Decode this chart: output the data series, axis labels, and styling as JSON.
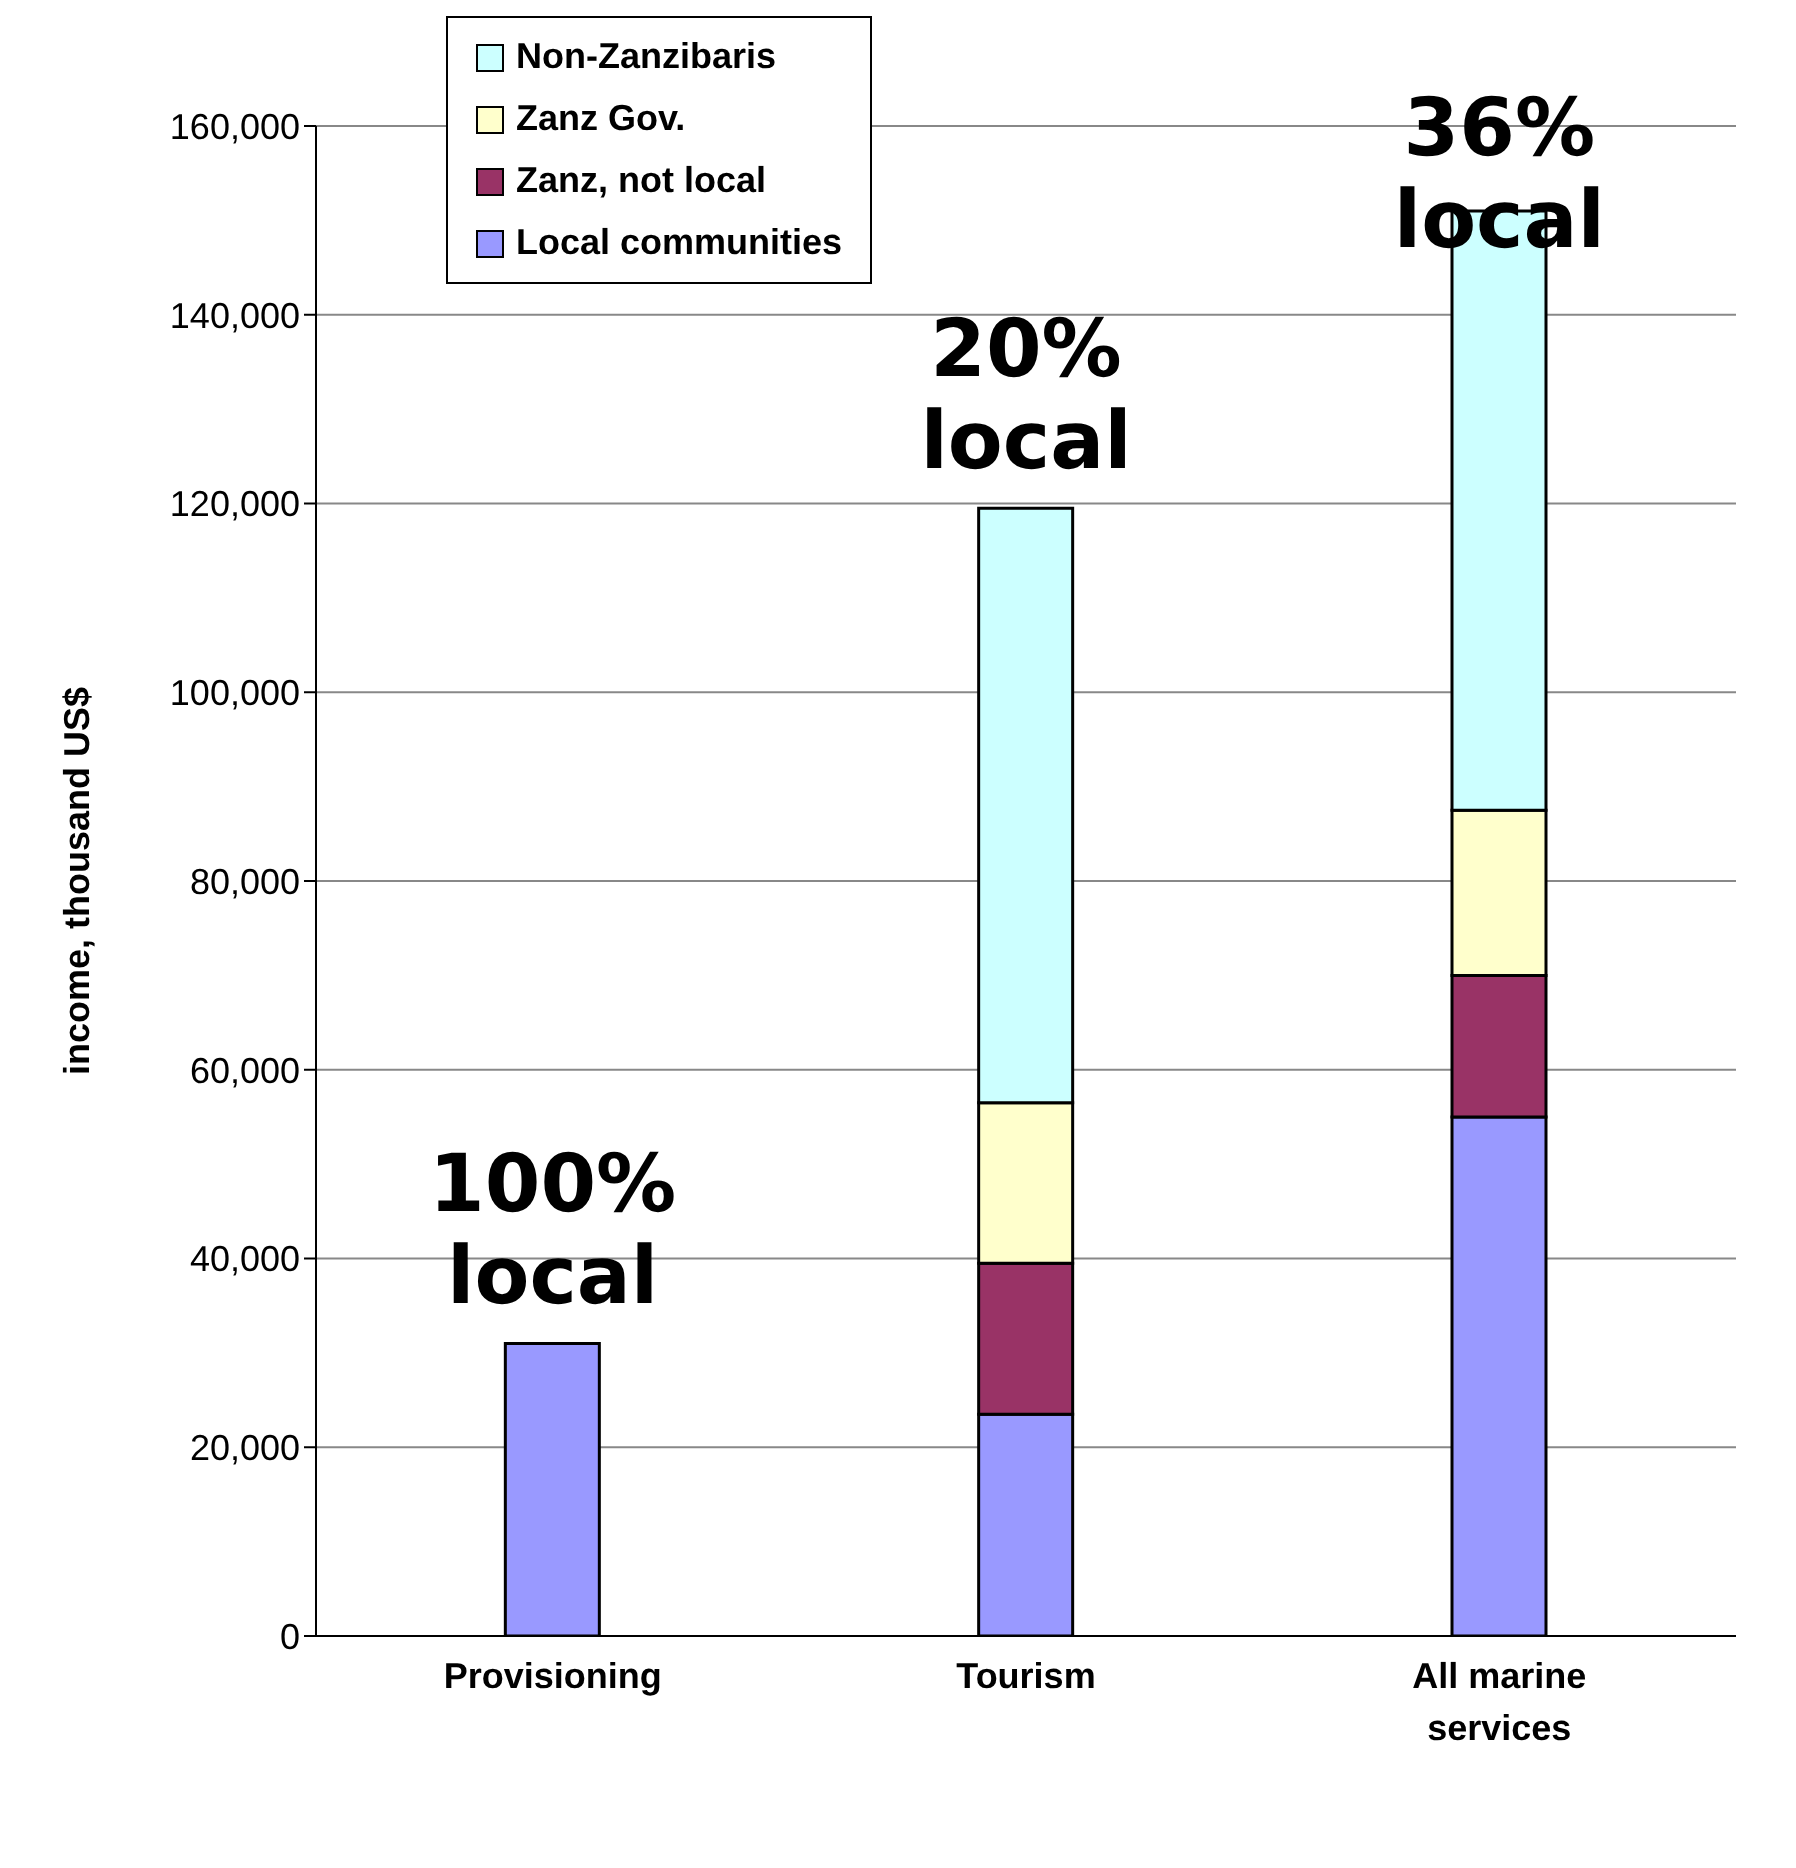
{
  "chart_data": {
    "type": "bar",
    "stacked": true,
    "ylabel": "income, thousand US$",
    "categories": [
      "Provisioning",
      "Tourism",
      "All marine services"
    ],
    "series": [
      {
        "name": "Local communities",
        "color": "#9999ff",
        "values": [
          31000,
          23500,
          55000
        ]
      },
      {
        "name": "Zanz, not local",
        "color": "#993366",
        "values": [
          null,
          16000,
          15000
        ]
      },
      {
        "name": "Zanz Gov.",
        "color": "#ffffcc",
        "values": [
          null,
          17000,
          17500
        ]
      },
      {
        "name": "Non-Zanzibaris",
        "color": "#ccffff",
        "values": [
          null,
          63000,
          63500
        ]
      }
    ],
    "ylim": [
      0,
      160000
    ],
    "yticks": [
      0,
      {
        "value": 20000,
        "label": "20,000"
      },
      {
        "value": 40000,
        "label": "40,000"
      },
      {
        "value": 60000,
        "label": "60,000"
      },
      {
        "value": 80000,
        "label": "80,000"
      },
      {
        "value": 100000,
        "label": "100,000"
      },
      {
        "value": 120000,
        "label": "120,000"
      },
      {
        "value": 140000,
        "label": "140,000"
      },
      {
        "value": 160000,
        "label": "160,000"
      }
    ],
    "grid": "y",
    "legend": "top",
    "annotations": [
      "100%\nlocal",
      "20%\nlocal",
      "36%\nlocal"
    ]
  }
}
